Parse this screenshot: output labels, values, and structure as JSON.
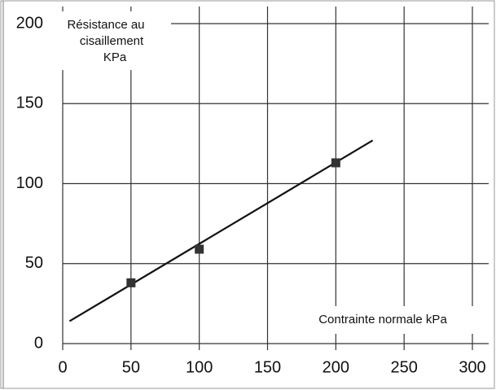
{
  "chart_data": {
    "type": "scatter",
    "ylabel": [
      "Résistance au",
      "cisaillement",
      "KPa"
    ],
    "xlabel": "Contrainte normale  kPa",
    "series": [
      {
        "style": "marker",
        "color": "#333333",
        "x": [
          50,
          100,
          200
        ],
        "values": [
          38,
          59,
          113
        ]
      },
      {
        "style": "line",
        "color": "#111111",
        "x": [
          5,
          227
        ],
        "values": [
          14,
          127
        ]
      }
    ],
    "xlim": [
      0,
      300
    ],
    "xticks": [
      0,
      50,
      100,
      150,
      200,
      250,
      300
    ],
    "ylim": [
      0,
      200
    ],
    "yticks": [
      0,
      50,
      100,
      150,
      200
    ],
    "grid": true
  }
}
